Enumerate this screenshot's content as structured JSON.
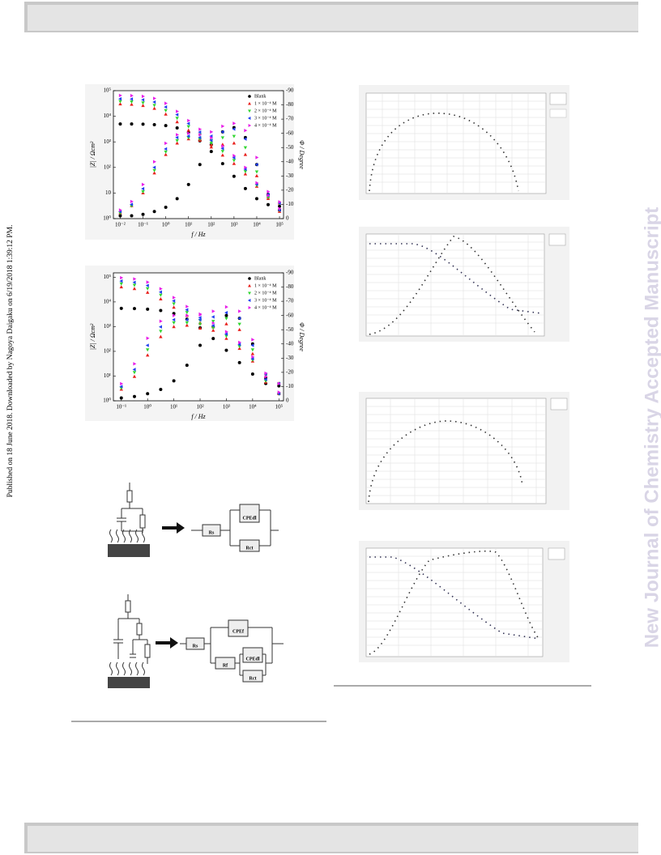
{
  "side_note": "Published on 18 June 2018. Downloaded by Nagoya Daigaku on 6/19/2018 1:39:12 PM.",
  "watermark": "New Journal of Chemistry Accepted Manuscript",
  "chart_data": [
    {
      "type": "scatter",
      "xscale": "log",
      "yscale": "log",
      "xlabel": "f / Hz",
      "ylabel": "|Z| / Ωcm²",
      "y2label": "Φ / Degree",
      "xlim": [
        0.005,
        150000
      ],
      "ylim": [
        1,
        100000
      ],
      "y2lim": [
        0,
        -90
      ],
      "xticks": [
        {
          "value": 0.01,
          "label": "10⁻²"
        },
        {
          "value": 0.1,
          "label": "10⁻¹"
        },
        {
          "value": 1,
          "label": "10⁰"
        },
        {
          "value": 10,
          "label": "10¹"
        },
        {
          "value": 100,
          "label": "10²"
        },
        {
          "value": 1000,
          "label": "10³"
        },
        {
          "value": 10000,
          "label": "10⁴"
        },
        {
          "value": 100000,
          "label": "10⁵"
        }
      ],
      "yticks": [
        {
          "value": 1,
          "label": "10⁰"
        },
        10,
        {
          "value": 100,
          "label": "10²"
        },
        {
          "value": 1000,
          "label": "10³"
        },
        {
          "value": 10000,
          "label": "10⁴"
        },
        {
          "value": 100000,
          "label": "10⁵"
        }
      ],
      "y2ticks": [
        0,
        -10,
        -20,
        -30,
        -40,
        -50,
        -60,
        -70,
        -80,
        -90
      ],
      "legend": "upper right",
      "x": [
        0.01,
        0.0316,
        0.1,
        0.316,
        1,
        3.16,
        10,
        31.6,
        100,
        316,
        1000,
        3160,
        10000,
        31600,
        100000
      ],
      "series": [
        {
          "name": "Blank",
          "color": "#000000",
          "marker": "circle",
          "values": [
            5000,
            5000,
            4900,
            4700,
            4300,
            3500,
            2300,
            1100,
            420,
            140,
            45,
            15,
            6,
            3.5,
            3
          ],
          "y2_values": [
            -2,
            -2,
            -3,
            -5,
            -8,
            -14,
            -24,
            -38,
            -52,
            -61,
            -64,
            -57,
            -38,
            -17,
            -6
          ]
        },
        {
          "name": "1 × 10⁻⁴ M",
          "color": "#e8201c",
          "marker": "triangle-up",
          "values": [
            30000,
            29000,
            26000,
            20000,
            12000,
            6000,
            2800,
            1300,
            620,
            300,
            140,
            55,
            18,
            7,
            4
          ],
          "y2_values": [
            -4,
            -9,
            -18,
            -32,
            -45,
            -53,
            -56,
            -55,
            -52,
            -52,
            -53,
            -45,
            -30,
            -14,
            -5
          ]
        },
        {
          "name": "2 × 10⁻⁴ M",
          "color": "#33d633",
          "marker": "triangle-down",
          "values": [
            38000,
            37000,
            34000,
            27000,
            17000,
            8500,
            4000,
            1900,
            900,
            430,
            190,
            70,
            20,
            7,
            4
          ],
          "y2_values": [
            -4,
            -9,
            -19,
            -34,
            -47,
            -55,
            -57,
            -56,
            -55,
            -57,
            -58,
            -50,
            -33,
            -15,
            -6
          ]
        },
        {
          "name": "3 × 10⁻⁴ M",
          "color": "#2040f0",
          "marker": "triangle-left",
          "values": [
            48000,
            47000,
            44000,
            36000,
            23000,
            11500,
            5200,
            2400,
            1150,
            550,
            240,
            85,
            22,
            8,
            4
          ],
          "y2_values": [
            -5,
            -10,
            -21,
            -36,
            -49,
            -57,
            -58,
            -57,
            -58,
            -61,
            -63,
            -56,
            -38,
            -17,
            -6
          ]
        },
        {
          "name": "4 × 10⁻⁴ M",
          "color": "#e81ee8",
          "marker": "triangle-right",
          "values": [
            65000,
            64000,
            60000,
            50000,
            32000,
            15500,
            6800,
            3100,
            1450,
            680,
            290,
            100,
            25,
            8,
            4.5
          ],
          "y2_values": [
            -6,
            -12,
            -24,
            -40,
            -53,
            -59,
            -60,
            -59,
            -61,
            -65,
            -67,
            -62,
            -43,
            -19,
            -7
          ]
        }
      ]
    },
    {
      "type": "scatter",
      "xscale": "log",
      "yscale": "log",
      "xlabel": "f / Hz",
      "ylabel": "|Z| / Ωcm²",
      "y2label": "Φ / Degree",
      "xlim": [
        0.05,
        150000
      ],
      "ylim": [
        1,
        150000
      ],
      "y2lim": [
        0,
        -90
      ],
      "xticks": [
        {
          "value": 0.1,
          "label": "10⁻¹"
        },
        {
          "value": 1,
          "label": "10⁰"
        },
        {
          "value": 10,
          "label": "10¹"
        },
        {
          "value": 100,
          "label": "10²"
        },
        {
          "value": 1000,
          "label": "10³"
        },
        {
          "value": 10000,
          "label": "10⁴"
        },
        {
          "value": 100000,
          "label": "10⁵"
        }
      ],
      "yticks": [
        {
          "value": 1,
          "label": "10⁰"
        },
        {
          "value": 10,
          "label": "10¹"
        },
        {
          "value": 100,
          "label": "10²"
        },
        {
          "value": 1000,
          "label": "10³"
        },
        {
          "value": 10000,
          "label": "10⁴"
        },
        {
          "value": 100000,
          "label": "10⁵"
        }
      ],
      "y2ticks": [
        0,
        -10,
        -20,
        -30,
        -40,
        -50,
        -60,
        -70,
        -80,
        -90
      ],
      "legend": "upper right",
      "x": [
        0.1,
        0.316,
        1,
        3.16,
        10,
        31.6,
        100,
        316,
        1000,
        3160,
        10000,
        31600,
        100000
      ],
      "series": [
        {
          "name": "Blank",
          "color": "#000000",
          "marker": "circle",
          "values": [
            5500,
            5400,
            5100,
            4500,
            3400,
            2000,
            900,
            330,
            110,
            35,
            12,
            5,
            4
          ],
          "y2_values": [
            -2,
            -3,
            -5,
            -8,
            -14,
            -25,
            -39,
            -52,
            -60,
            -58,
            -40,
            -16,
            -5
          ]
        },
        {
          "name": "1 × 10⁻⁴ M",
          "color": "#e8201c",
          "marker": "triangle-up",
          "values": [
            40000,
            34000,
            24000,
            13000,
            6000,
            2800,
            1400,
            700,
            330,
            130,
            40,
            10,
            5
          ],
          "y2_values": [
            -8,
            -17,
            -32,
            -45,
            -52,
            -53,
            -51,
            -52,
            -54,
            -50,
            -33,
            -13,
            -5
          ]
        },
        {
          "name": "2 × 10⁻⁴ M",
          "color": "#33d633",
          "marker": "triangle-down",
          "values": [
            55000,
            48000,
            35000,
            19000,
            8500,
            3800,
            1800,
            900,
            420,
            160,
            45,
            11,
            5
          ],
          "y2_values": [
            -9,
            -20,
            -36,
            -49,
            -55,
            -55,
            -54,
            -56,
            -58,
            -54,
            -36,
            -14,
            -5
          ]
        },
        {
          "name": "3 × 10⁻⁴ M",
          "color": "#2040f0",
          "marker": "triangle-left",
          "values": [
            70000,
            62000,
            46000,
            25000,
            11000,
            4800,
            2300,
            1100,
            500,
            190,
            50,
            12,
            5
          ],
          "y2_values": [
            -10,
            -22,
            -39,
            -52,
            -57,
            -57,
            -57,
            -59,
            -62,
            -58,
            -39,
            -15,
            -5
          ]
        },
        {
          "name": "4 × 10⁻⁴ M",
          "color": "#e81ee8",
          "marker": "triangle-right",
          "values": [
            95000,
            85000,
            63000,
            34000,
            15000,
            6500,
            3000,
            1400,
            620,
            230,
            60,
            13,
            5
          ],
          "y2_values": [
            -12,
            -26,
            -44,
            -56,
            -60,
            -60,
            -61,
            -63,
            -66,
            -63,
            -43,
            -17,
            -6
          ]
        }
      ]
    }
  ],
  "circuits": [
    {
      "labels": [
        "Rs",
        "CPEdl",
        "Rct"
      ]
    },
    {
      "labels": [
        "Rs",
        "CPEf",
        "Rf",
        "CPEdl",
        "Rct"
      ]
    }
  ]
}
